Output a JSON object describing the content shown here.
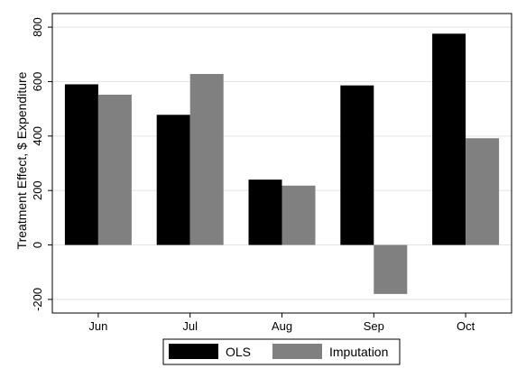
{
  "chart_data": {
    "type": "bar",
    "categories": [
      "Jun",
      "Jul",
      "Aug",
      "Sep",
      "Oct"
    ],
    "series": [
      {
        "name": "OLS",
        "values": [
          590,
          478,
          240,
          586,
          776
        ],
        "color": "#000000"
      },
      {
        "name": "Imputation",
        "values": [
          552,
          628,
          218,
          -180,
          392
        ],
        "color": "#808080"
      }
    ],
    "ylabel": "Treatment Effect, $ Expenditure",
    "xlabel": "",
    "title": "",
    "ylim": [
      -250,
      850
    ],
    "yticks": [
      "-200",
      "0",
      "200",
      "400",
      "600",
      "800"
    ],
    "grid": true,
    "legend_position": "bottom"
  }
}
